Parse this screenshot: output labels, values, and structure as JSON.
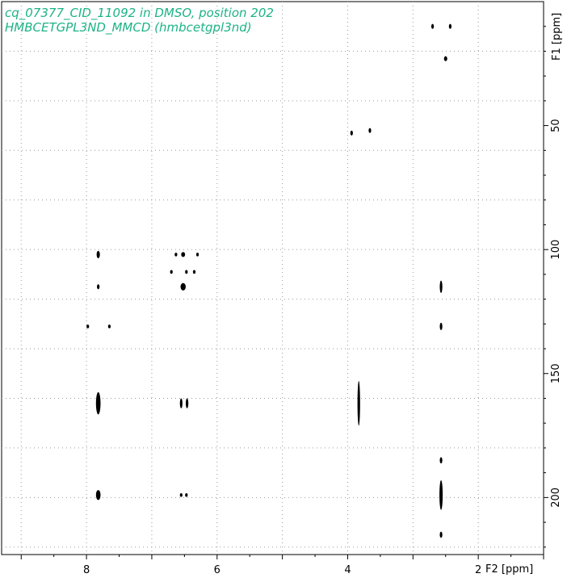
{
  "header": {
    "line1": "cq_07377_CID_11092 in DMSO, position 202",
    "line2": "HMBCETGPL3ND_MMCD (hmbcetgpl3nd)"
  },
  "colors": {
    "header_text": "#1db386",
    "peaks": "#000000",
    "grid": "#9a9a9a",
    "frame": "#000000"
  },
  "chart_data": {
    "type": "scatter",
    "title": "",
    "xlabel": "F2 [ppm]",
    "ylabel": "F1 [ppm]",
    "x_reversed": true,
    "y_reversed": true,
    "xlim": [
      9.3,
      1.0
    ],
    "ylim": [
      0,
      223
    ],
    "x_ticks": [
      8,
      6,
      4,
      2
    ],
    "y_ticks": [
      50,
      100,
      150,
      200
    ],
    "grid": true,
    "grid_x": [
      9,
      8,
      7,
      6,
      5,
      4,
      3,
      2
    ],
    "grid_y": [
      20,
      40,
      60,
      80,
      100,
      120,
      140,
      160,
      180,
      200,
      220
    ],
    "peaks": [
      {
        "x": 2.7,
        "y": 10,
        "w": 0.04,
        "h": 2
      },
      {
        "x": 2.43,
        "y": 10,
        "w": 0.04,
        "h": 2
      },
      {
        "x": 2.5,
        "y": 23,
        "w": 0.05,
        "h": 2
      },
      {
        "x": 3.94,
        "y": 53,
        "w": 0.04,
        "h": 2
      },
      {
        "x": 3.66,
        "y": 52,
        "w": 0.03,
        "h": 2
      },
      {
        "x": 7.82,
        "y": 102,
        "w": 0.05,
        "h": 3
      },
      {
        "x": 6.63,
        "y": 102,
        "w": 0.03,
        "h": 1.5
      },
      {
        "x": 6.52,
        "y": 102,
        "w": 0.06,
        "h": 2
      },
      {
        "x": 6.3,
        "y": 102,
        "w": 0.03,
        "h": 1.5
      },
      {
        "x": 6.7,
        "y": 109,
        "w": 0.04,
        "h": 1.5
      },
      {
        "x": 6.47,
        "y": 109,
        "w": 0.04,
        "h": 1.5
      },
      {
        "x": 6.35,
        "y": 109,
        "w": 0.04,
        "h": 1.5
      },
      {
        "x": 7.82,
        "y": 115,
        "w": 0.04,
        "h": 2
      },
      {
        "x": 6.52,
        "y": 115,
        "w": 0.08,
        "h": 3
      },
      {
        "x": 2.57,
        "y": 115,
        "w": 0.04,
        "h": 5
      },
      {
        "x": 7.98,
        "y": 131,
        "w": 0.04,
        "h": 1.5
      },
      {
        "x": 7.65,
        "y": 131,
        "w": 0.03,
        "h": 1.5
      },
      {
        "x": 2.57,
        "y": 131,
        "w": 0.03,
        "h": 3
      },
      {
        "x": 7.82,
        "y": 162,
        "w": 0.07,
        "h": 9
      },
      {
        "x": 6.55,
        "y": 162,
        "w": 0.03,
        "h": 4
      },
      {
        "x": 6.46,
        "y": 162,
        "w": 0.03,
        "h": 4
      },
      {
        "x": 3.83,
        "y": 162,
        "w": 0.04,
        "h": 18
      },
      {
        "x": 2.57,
        "y": 185,
        "w": 0.03,
        "h": 2.5
      },
      {
        "x": 7.82,
        "y": 199,
        "w": 0.07,
        "h": 4
      },
      {
        "x": 6.55,
        "y": 199,
        "w": 0.03,
        "h": 1.5
      },
      {
        "x": 6.47,
        "y": 199,
        "w": 0.03,
        "h": 1.5
      },
      {
        "x": 2.57,
        "y": 199,
        "w": 0.05,
        "h": 12
      },
      {
        "x": 2.57,
        "y": 215,
        "w": 0.03,
        "h": 2.5
      }
    ]
  }
}
